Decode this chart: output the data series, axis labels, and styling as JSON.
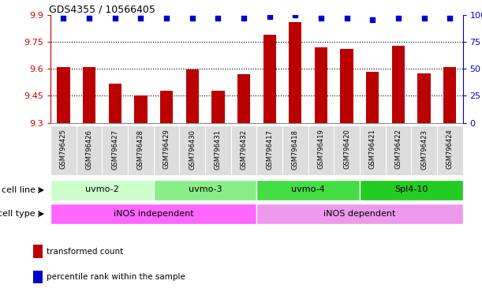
{
  "title": "GDS4355 / 10566405",
  "samples": [
    "GSM796425",
    "GSM796426",
    "GSM796427",
    "GSM796428",
    "GSM796429",
    "GSM796430",
    "GSM796431",
    "GSM796432",
    "GSM796417",
    "GSM796418",
    "GSM796419",
    "GSM796420",
    "GSM796421",
    "GSM796422",
    "GSM796423",
    "GSM796424"
  ],
  "red_values": [
    9.61,
    9.61,
    9.52,
    9.45,
    9.48,
    9.595,
    9.48,
    9.57,
    9.79,
    9.86,
    9.72,
    9.71,
    9.585,
    9.73,
    9.575,
    9.61
  ],
  "blue_values": [
    97,
    97,
    97,
    97,
    97,
    97,
    97,
    97,
    99,
    100,
    97,
    97,
    96,
    97,
    97,
    97
  ],
  "ylim_left": [
    9.3,
    9.9
  ],
  "ylim_right": [
    0,
    100
  ],
  "yticks_left": [
    9.3,
    9.45,
    9.6,
    9.75,
    9.9
  ],
  "ytick_labels_left": [
    "9.3",
    "9.45",
    "9.6",
    "9.75",
    "9.9"
  ],
  "yticks_right": [
    0,
    25,
    50,
    75,
    100
  ],
  "ytick_labels_right": [
    "0",
    "25",
    "50",
    "75",
    "100%"
  ],
  "cell_line_groups": [
    {
      "label": "uvmo-2",
      "start": 0,
      "end": 4,
      "color": "#ccffcc"
    },
    {
      "label": "uvmo-3",
      "start": 4,
      "end": 8,
      "color": "#88ee88"
    },
    {
      "label": "uvmo-4",
      "start": 8,
      "end": 12,
      "color": "#44dd44"
    },
    {
      "label": "Spl4-10",
      "start": 12,
      "end": 16,
      "color": "#22cc22"
    }
  ],
  "cell_type_groups": [
    {
      "label": "iNOS independent",
      "start": 0,
      "end": 8,
      "color": "#ff66ff"
    },
    {
      "label": "iNOS dependent",
      "start": 8,
      "end": 16,
      "color": "#ee99ee"
    }
  ],
  "bar_color": "#bb0000",
  "dot_color": "#0000cc",
  "bar_width": 0.5,
  "axis_left_color": "#cc0000",
  "axis_right_color": "#0000cc",
  "cell_line_label": "cell line",
  "cell_type_label": "cell type",
  "legend_items": [
    {
      "color": "#bb0000",
      "label": "transformed count"
    },
    {
      "color": "#0000cc",
      "label": "percentile rank within the sample"
    }
  ],
  "xtick_bg": "#dddddd"
}
